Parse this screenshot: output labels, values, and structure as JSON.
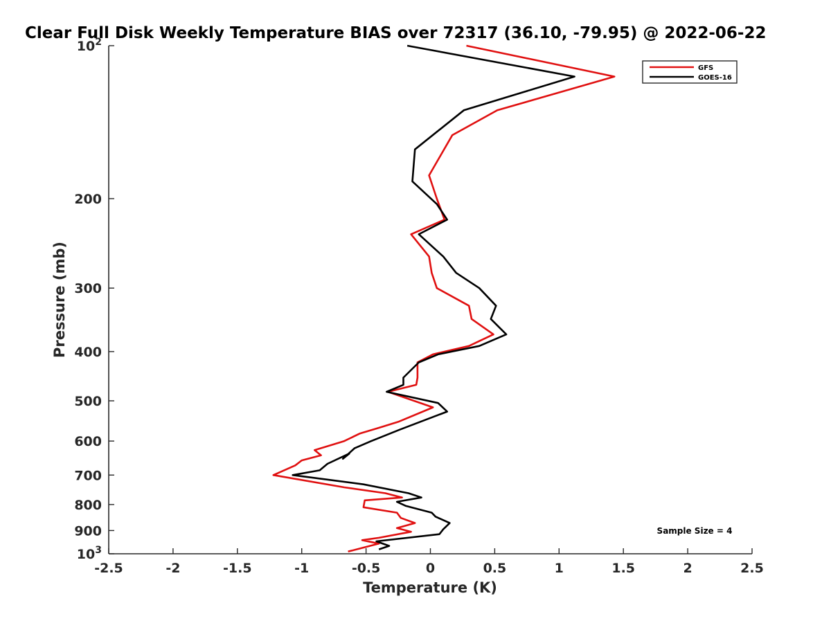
{
  "chart_data": {
    "type": "line",
    "title": "Clear Full Disk Weekly Temperature BIAS over 72317 (36.10, -79.95) @ 2022-06-22",
    "xlabel": "Temperature (K)",
    "ylabel": "Pressure (mb)",
    "xlim": [
      -2.5,
      2.5
    ],
    "ylim": [
      100,
      1000
    ],
    "y_scale": "log",
    "y_reversed": true,
    "x_ticks": [
      "-2.5",
      "-2",
      "-1.5",
      "-1",
      "-0.5",
      "0",
      "0.5",
      "1",
      "1.5",
      "2",
      "2.5"
    ],
    "x_tick_values": [
      -2.5,
      -2,
      -1.5,
      -1,
      -0.5,
      0,
      0.5,
      1,
      1.5,
      2,
      2.5
    ],
    "y_ticks": [
      {
        "value": 100,
        "base": "10",
        "exp": "2"
      },
      {
        "value": 200,
        "label": "200"
      },
      {
        "value": 300,
        "label": "300"
      },
      {
        "value": 400,
        "label": "400"
      },
      {
        "value": 500,
        "label": "500"
      },
      {
        "value": 600,
        "label": "600"
      },
      {
        "value": 700,
        "label": "700"
      },
      {
        "value": 800,
        "label": "800"
      },
      {
        "value": 900,
        "label": "900"
      },
      {
        "value": 1000,
        "base": "10",
        "exp": "3"
      }
    ],
    "legend_position": "top-right",
    "grid": false,
    "annotation": "Sample Size = 4",
    "series": [
      {
        "name": "GFS",
        "color": "#e01010",
        "x": [
          0.28,
          1.43,
          0.52,
          0.17,
          -0.01,
          0.05,
          0.11,
          -0.15,
          -0.01,
          0.01,
          0.05,
          0.3,
          0.32,
          0.49,
          0.3,
          0.02,
          -0.1,
          -0.1,
          -0.11,
          -0.33,
          0.02,
          -0.25,
          -0.4,
          -0.55,
          -0.67,
          -0.9,
          -0.85,
          -1.0,
          -1.05,
          -1.22,
          -0.67,
          -0.35,
          -0.22,
          -0.51,
          -0.52,
          -0.26,
          -0.23,
          -0.12,
          -0.26,
          -0.15,
          -0.4,
          -0.53,
          -0.4,
          -0.64
        ],
        "y": [
          100,
          115,
          134,
          150,
          180,
          200,
          220,
          235,
          260,
          280,
          300,
          325,
          345,
          370,
          390,
          405,
          420,
          450,
          465,
          480,
          515,
          550,
          565,
          580,
          600,
          625,
          640,
          655,
          670,
          700,
          740,
          760,
          775,
          785,
          810,
          830,
          850,
          870,
          890,
          905,
          930,
          940,
          955,
          990
        ]
      },
      {
        "name": "GOES-16",
        "color": "#000000",
        "x": [
          -0.18,
          1.12,
          0.26,
          -0.12,
          -0.14,
          0.05,
          0.13,
          -0.09,
          0.1,
          0.2,
          0.38,
          0.51,
          0.47,
          0.59,
          0.38,
          0.06,
          -0.09,
          -0.21,
          -0.21,
          -0.34,
          0.06,
          0.13,
          -0.24,
          -0.46,
          -0.59,
          -0.68,
          -0.63,
          -0.8,
          -0.86,
          -1.07,
          -0.52,
          -0.17,
          -0.07,
          -0.26,
          -0.19,
          0.01,
          0.04,
          0.15,
          0.1,
          0.07,
          -0.42,
          -0.32,
          -0.4
        ],
        "y": [
          100,
          115,
          134,
          160,
          185,
          205,
          220,
          235,
          260,
          280,
          300,
          325,
          345,
          370,
          390,
          405,
          420,
          450,
          465,
          480,
          505,
          525,
          570,
          600,
          620,
          650,
          635,
          665,
          685,
          700,
          730,
          760,
          775,
          790,
          805,
          830,
          845,
          870,
          895,
          915,
          945,
          965,
          980
        ]
      }
    ]
  }
}
